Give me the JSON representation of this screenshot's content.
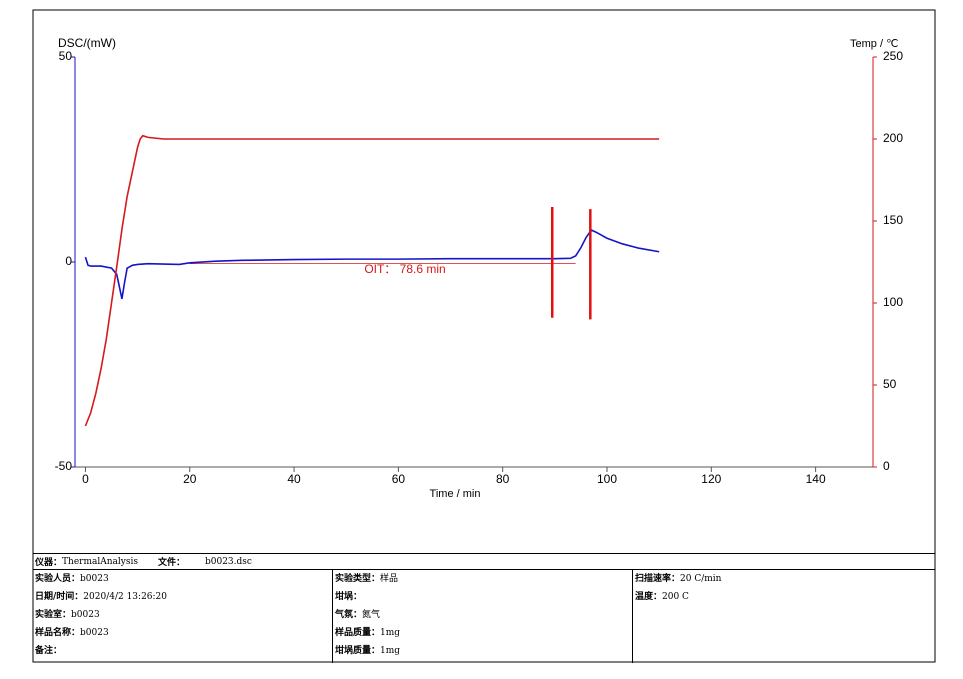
{
  "chart_data": {
    "type": "line",
    "ylabel": "DSC/(mW)",
    "y2label": "Temp / ℃",
    "xlabel": "Time / min",
    "xlim": [
      -2,
      151
    ],
    "xticks": [
      0,
      20,
      40,
      60,
      80,
      100,
      120,
      140
    ],
    "ylim": [
      -50,
      50
    ],
    "yticks": [
      -50,
      0,
      50
    ],
    "y2lim": [
      0,
      250
    ],
    "y2ticks": [
      0,
      50,
      100,
      150,
      200,
      250
    ],
    "series": [
      {
        "name": "DSC",
        "color": "#1515c8",
        "x": [
          0,
          0.5,
          1,
          3,
          5,
          6,
          6.5,
          7,
          7.5,
          8,
          9,
          10,
          12,
          15,
          18,
          20,
          25,
          30,
          40,
          50,
          60,
          70,
          80,
          90,
          93,
          94,
          95,
          96,
          97,
          98,
          100,
          103,
          106,
          110
        ],
        "values": [
          1.2,
          -0.8,
          -1,
          -1,
          -1.5,
          -3,
          -6,
          -9,
          -5,
          -1.5,
          -0.8,
          -0.6,
          -0.4,
          -0.5,
          -0.6,
          -0.2,
          0.2,
          0.4,
          0.6,
          0.7,
          0.7,
          0.8,
          0.8,
          0.8,
          0.9,
          1.5,
          3.5,
          6,
          7.8,
          7.2,
          5.8,
          4.4,
          3.4,
          2.5
        ]
      },
      {
        "name": "Temp",
        "color": "#d41a1a",
        "axis": "y2",
        "x": [
          0,
          1,
          2,
          3,
          4,
          5,
          6,
          7,
          8,
          9,
          10,
          10.5,
          11,
          12,
          15,
          20,
          50,
          80,
          110
        ],
        "values": [
          25,
          33,
          45,
          60,
          78,
          100,
          122,
          145,
          165,
          180,
          195,
          200,
          202,
          201,
          200,
          200,
          200,
          200,
          200
        ]
      }
    ],
    "markers": [
      {
        "x": 89.5,
        "y": [
          -13.6,
          13.4
        ]
      },
      {
        "x": 96.8,
        "y": [
          -14,
          12.9
        ]
      }
    ],
    "oit_line": {
      "x": [
        20,
        94
      ],
      "y": -0.4
    },
    "annotation": "OIT： 78.6 min"
  },
  "info": {
    "instrument": {
      "label": "仪器：",
      "value": "ThermalAnalysis"
    },
    "file": {
      "label": "文件：",
      "value": "b0023.dsc"
    },
    "columns": [
      [
        {
          "label": "实验人员：",
          "value": "b0023"
        },
        {
          "label": "日期/时间：",
          "value": "2020/4/2 13:26:20"
        },
        {
          "label": "实验室：",
          "value": "b0023"
        },
        {
          "label": "样品名称：",
          "value": "b0023"
        },
        {
          "label": "备注："
        }
      ],
      [
        {
          "label": "实验类型：",
          "value": "样品"
        },
        {
          "label": "坩埚："
        },
        {
          "label": "气氛：",
          "value": "氮气"
        },
        {
          "label": "样品质量：",
          "value": "1mg"
        },
        {
          "label": "坩埚质量：",
          "value": "1mg"
        }
      ],
      [
        {
          "label": "扫描速率：",
          "value": "20 C/min"
        },
        {
          "label": "温度：",
          "value": "200 C"
        }
      ]
    ]
  }
}
